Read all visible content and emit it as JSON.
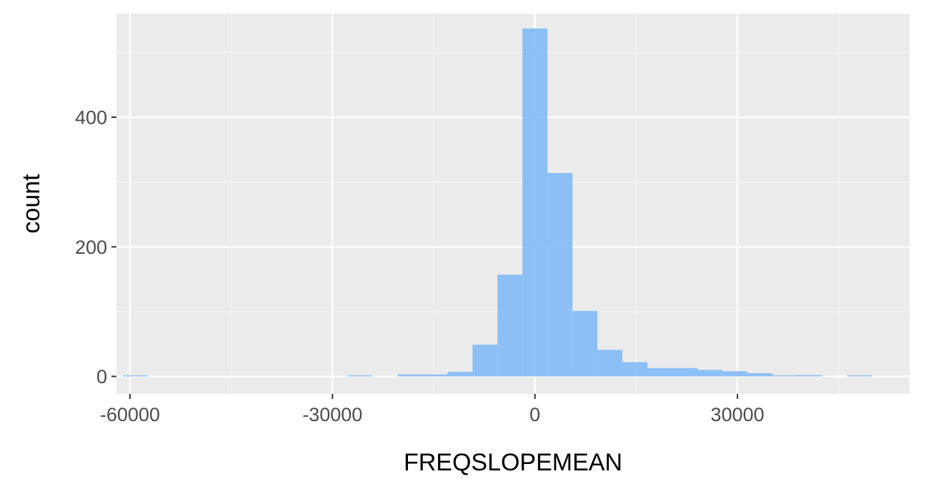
{
  "chart_data": {
    "type": "bar",
    "title": "",
    "xlabel": "FREQSLOPEMEAN",
    "ylabel": "count",
    "xlim": [
      -62000,
      55500
    ],
    "ylim": [
      -27,
      560
    ],
    "x_ticks": [
      -60000,
      -30000,
      0,
      30000
    ],
    "x_tick_labels": [
      "-60000",
      "-30000",
      "0",
      "30000"
    ],
    "y_ticks": [
      0,
      200,
      400
    ],
    "y_tick_labels": [
      "0",
      "200",
      "400"
    ],
    "grid": true,
    "bin_width": 3700,
    "bins": [
      {
        "x": -59200,
        "count": 1
      },
      {
        "x": -55500,
        "count": 0
      },
      {
        "x": -51800,
        "count": 0
      },
      {
        "x": -48100,
        "count": 0
      },
      {
        "x": -44400,
        "count": 0
      },
      {
        "x": -40700,
        "count": 0
      },
      {
        "x": -37000,
        "count": 0
      },
      {
        "x": -33300,
        "count": 0
      },
      {
        "x": -29600,
        "count": 0
      },
      {
        "x": -25900,
        "count": 1
      },
      {
        "x": -22200,
        "count": 0
      },
      {
        "x": -18500,
        "count": 3
      },
      {
        "x": -14800,
        "count": 3
      },
      {
        "x": -11100,
        "count": 7
      },
      {
        "x": -7400,
        "count": 49
      },
      {
        "x": -3700,
        "count": 157
      },
      {
        "x": 0,
        "count": 537
      },
      {
        "x": 3700,
        "count": 314
      },
      {
        "x": 7400,
        "count": 101
      },
      {
        "x": 11100,
        "count": 41
      },
      {
        "x": 14800,
        "count": 22
      },
      {
        "x": 18500,
        "count": 13
      },
      {
        "x": 22200,
        "count": 13
      },
      {
        "x": 25900,
        "count": 10
      },
      {
        "x": 29600,
        "count": 8
      },
      {
        "x": 33300,
        "count": 5
      },
      {
        "x": 37000,
        "count": 1
      },
      {
        "x": 40700,
        "count": 2
      },
      {
        "x": 44400,
        "count": 0
      },
      {
        "x": 48100,
        "count": 1
      }
    ],
    "colors": {
      "panel": "#ebebeb",
      "grid_major": "#ffffff",
      "grid_minor": "#f5f5f5",
      "bar": "#86bdf6"
    }
  }
}
